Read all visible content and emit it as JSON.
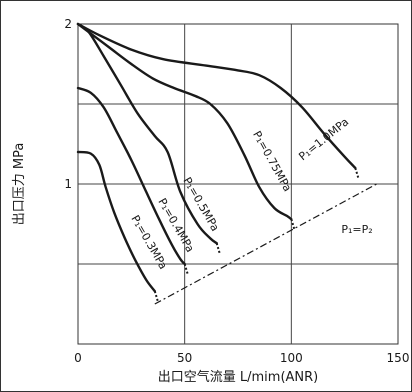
{
  "chart_data": {
    "type": "line",
    "xlabel": "出口空气流量 L/mim(ANR)",
    "ylabel": "出口压力 MPa",
    "xlim": [
      0,
      150
    ],
    "ylim": [
      0,
      2
    ],
    "x_ticks": [
      "0",
      "50",
      "100",
      "150"
    ],
    "y_ticks": [
      "1",
      "2"
    ],
    "grid": true,
    "series": [
      {
        "name": "P₁=1.0MPa",
        "style": "solid",
        "points": [
          [
            0,
            2
          ],
          [
            10,
            1.93
          ],
          [
            25,
            1.84
          ],
          [
            40,
            1.78
          ],
          [
            60,
            1.74
          ],
          [
            75,
            1.71
          ],
          [
            85,
            1.68
          ],
          [
            95,
            1.6
          ],
          [
            105,
            1.48
          ],
          [
            115,
            1.32
          ],
          [
            125,
            1.17
          ],
          [
            130,
            1.1
          ]
        ]
      },
      {
        "name": "P₁=0.75MPa",
        "style": "solid",
        "points": [
          [
            0,
            2
          ],
          [
            8,
            1.92
          ],
          [
            15,
            1.85
          ],
          [
            25,
            1.75
          ],
          [
            35,
            1.66
          ],
          [
            45,
            1.6
          ],
          [
            55,
            1.55
          ],
          [
            62,
            1.5
          ],
          [
            70,
            1.38
          ],
          [
            78,
            1.18
          ],
          [
            85,
            0.98
          ],
          [
            92,
            0.85
          ],
          [
            98,
            0.8
          ],
          [
            100,
            0.78
          ]
        ]
      },
      {
        "name": "P₁=0.5MPa",
        "style": "solid",
        "points": [
          [
            0,
            2
          ],
          [
            5,
            1.95
          ],
          [
            12,
            1.8
          ],
          [
            20,
            1.62
          ],
          [
            28,
            1.44
          ],
          [
            36,
            1.3
          ],
          [
            42,
            1.2
          ],
          [
            48,
            0.95
          ],
          [
            56,
            0.75
          ],
          [
            62,
            0.66
          ],
          [
            65,
            0.63
          ]
        ]
      },
      {
        "name": "P₁=0.4MPa",
        "style": "solid",
        "points": [
          [
            0,
            1.6
          ],
          [
            6,
            1.57
          ],
          [
            12,
            1.48
          ],
          [
            18,
            1.33
          ],
          [
            25,
            1.15
          ],
          [
            32,
            0.95
          ],
          [
            38,
            0.78
          ],
          [
            44,
            0.62
          ],
          [
            48,
            0.53
          ],
          [
            50,
            0.5
          ]
        ]
      },
      {
        "name": "P₁=0.3MPa",
        "style": "solid",
        "points": [
          [
            0,
            1.2
          ],
          [
            6,
            1.19
          ],
          [
            10,
            1.12
          ],
          [
            13,
            0.98
          ],
          [
            17,
            0.82
          ],
          [
            22,
            0.66
          ],
          [
            27,
            0.52
          ],
          [
            32,
            0.4
          ],
          [
            36,
            0.33
          ]
        ]
      },
      {
        "name": "P₁=P₂",
        "style": "dash-dot",
        "points": [
          [
            36,
            0.25
          ],
          [
            140,
            1.0
          ]
        ]
      }
    ]
  },
  "labels": {
    "p10": "P₁=1.0MPa",
    "p075": "P₁=0.75MPa",
    "p05": "P₁=0.5MPa",
    "p04": "P₁=0.4MPa",
    "p03": "P₁=0.3MPa",
    "peq": "P₁=P₂"
  }
}
